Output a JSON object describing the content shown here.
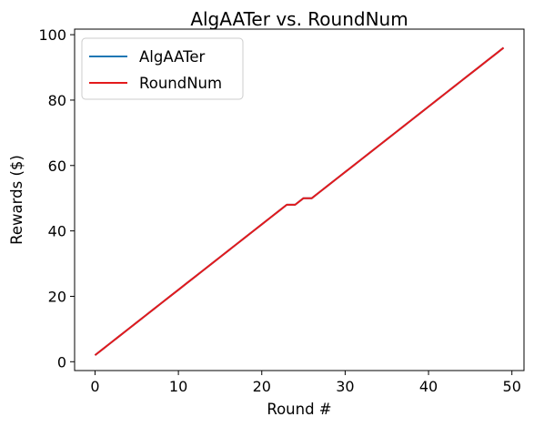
{
  "chart_data": {
    "type": "line",
    "title": "AlgAATer vs. RoundNum",
    "xlabel": "Round #",
    "ylabel": "Rewards ($)",
    "xlim": [
      -2.45,
      51.45
    ],
    "ylim": [
      -2.7,
      101.7
    ],
    "xticks": [
      0,
      10,
      20,
      30,
      40,
      50
    ],
    "yticks": [
      0,
      20,
      40,
      60,
      80,
      100
    ],
    "grid": false,
    "legend_position": "upper-left",
    "series": [
      {
        "name": "AlgAATer",
        "color": "#1f77b4",
        "x": [
          0,
          1,
          2,
          3,
          4,
          5,
          6,
          7,
          8,
          9,
          10,
          11,
          12,
          13,
          14,
          15,
          16,
          17,
          18,
          19,
          20,
          21,
          22,
          23,
          24,
          25,
          26,
          27,
          28,
          29,
          30,
          31,
          32,
          33,
          34,
          35,
          36,
          37,
          38,
          39,
          40,
          41,
          42,
          43,
          44,
          45,
          46,
          47,
          48,
          49
        ],
        "y": [
          2,
          4,
          6,
          8,
          10,
          12,
          14,
          16,
          18,
          20,
          22,
          24,
          26,
          28,
          30,
          32,
          34,
          36,
          38,
          40,
          42,
          44,
          46,
          48,
          48,
          50,
          50,
          52,
          54,
          56,
          58,
          60,
          62,
          64,
          66,
          68,
          70,
          72,
          74,
          76,
          78,
          80,
          82,
          84,
          86,
          88,
          90,
          92,
          94,
          96
        ]
      },
      {
        "name": "RoundNum",
        "color": "#e31a1c",
        "x": [
          0,
          1,
          2,
          3,
          4,
          5,
          6,
          7,
          8,
          9,
          10,
          11,
          12,
          13,
          14,
          15,
          16,
          17,
          18,
          19,
          20,
          21,
          22,
          23,
          24,
          25,
          26,
          27,
          28,
          29,
          30,
          31,
          32,
          33,
          34,
          35,
          36,
          37,
          38,
          39,
          40,
          41,
          42,
          43,
          44,
          45,
          46,
          47,
          48,
          49
        ],
        "y": [
          2,
          4,
          6,
          8,
          10,
          12,
          14,
          16,
          18,
          20,
          22,
          24,
          26,
          28,
          30,
          32,
          34,
          36,
          38,
          40,
          42,
          44,
          46,
          48,
          48,
          50,
          50,
          52,
          54,
          56,
          58,
          60,
          62,
          64,
          66,
          68,
          70,
          72,
          74,
          76,
          78,
          80,
          82,
          84,
          86,
          88,
          90,
          92,
          94,
          96
        ]
      }
    ]
  }
}
